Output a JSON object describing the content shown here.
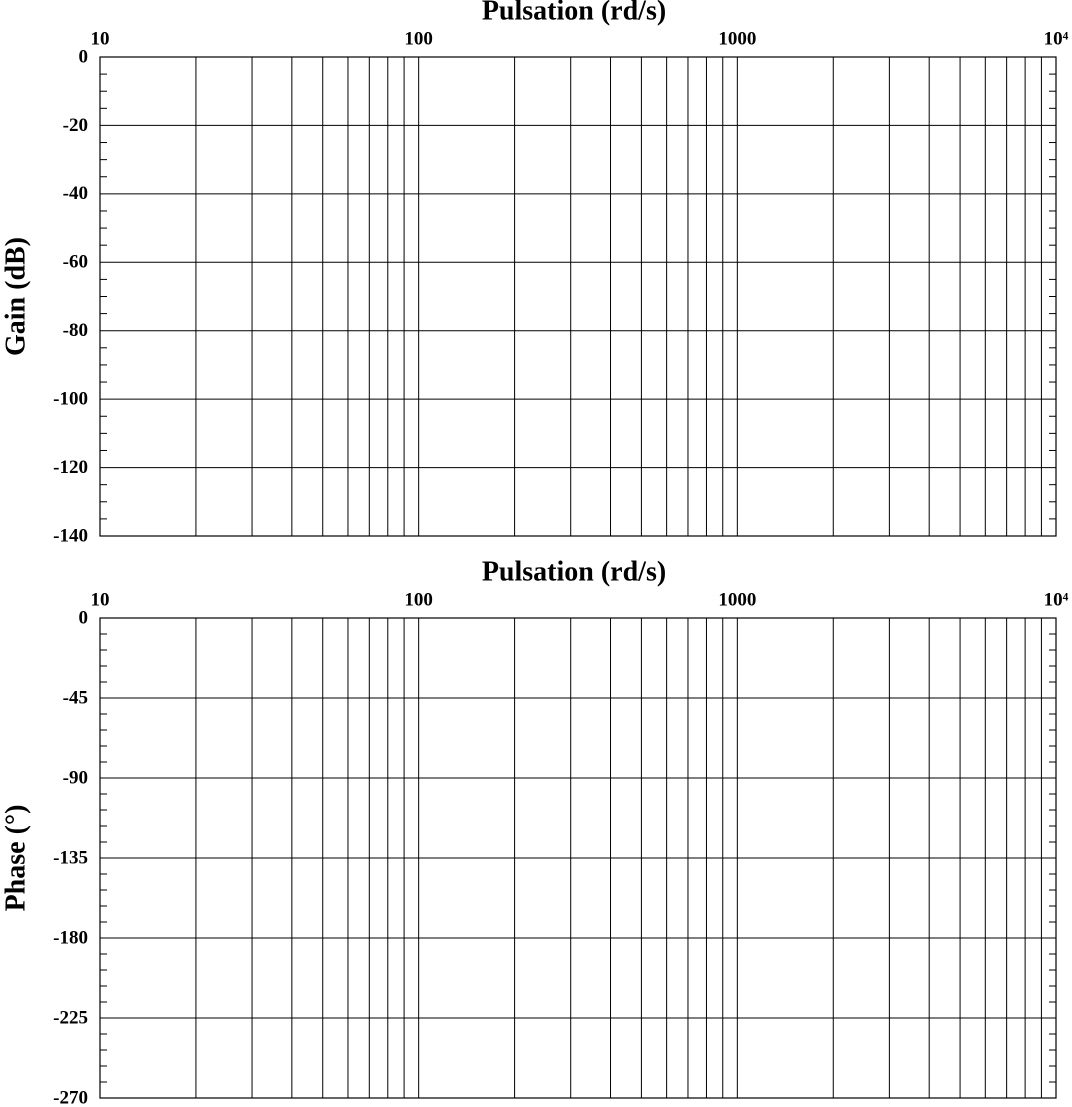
{
  "chart_data": [
    {
      "type": "line",
      "xlabel": "Pulsation (rd/s)",
      "ylabel": "Gain (dB)",
      "log_x": true,
      "grid": true,
      "xlim": [
        10,
        10000
      ],
      "xticks": [
        10,
        100,
        1000,
        {
          "value": 10000,
          "label": "10⁴"
        }
      ],
      "xminorticks": [
        20,
        30,
        40,
        50,
        60,
        70,
        80,
        90,
        200,
        300,
        400,
        500,
        600,
        700,
        800,
        900,
        2000,
        3000,
        4000,
        5000,
        6000,
        7000,
        8000,
        9000
      ],
      "ylim": [
        -140,
        0
      ],
      "yticks": [
        0,
        -20,
        -40,
        -60,
        -80,
        -100,
        -120,
        -140
      ],
      "yminorticks": [
        -5,
        -10,
        -15,
        -25,
        -30,
        -35,
        -45,
        -50,
        -55,
        -65,
        -70,
        -75,
        -85,
        -90,
        -95,
        -105,
        -110,
        -115,
        -125,
        -130,
        -135
      ],
      "series": []
    },
    {
      "type": "line",
      "xlabel": "Pulsation (rd/s)",
      "ylabel": "Phase (°)",
      "log_x": true,
      "grid": true,
      "xlim": [
        10,
        10000
      ],
      "xticks": [
        10,
        100,
        1000,
        {
          "value": 10000,
          "label": "10⁴"
        }
      ],
      "xminorticks": [
        20,
        30,
        40,
        50,
        60,
        70,
        80,
        90,
        200,
        300,
        400,
        500,
        600,
        700,
        800,
        900,
        2000,
        3000,
        4000,
        5000,
        6000,
        7000,
        8000,
        9000
      ],
      "ylim": [
        -270,
        0
      ],
      "yticks": [
        0,
        -45,
        -90,
        -135,
        -180,
        -225,
        -270
      ],
      "yminorticks": [
        -9,
        -18,
        -27,
        -36,
        -54,
        -63,
        -72,
        -81,
        -99,
        -108,
        -117,
        -126,
        -144,
        -153,
        -162,
        -171,
        -189,
        -198,
        -207,
        -216,
        -234,
        -243,
        -252,
        -261
      ],
      "series": []
    }
  ]
}
